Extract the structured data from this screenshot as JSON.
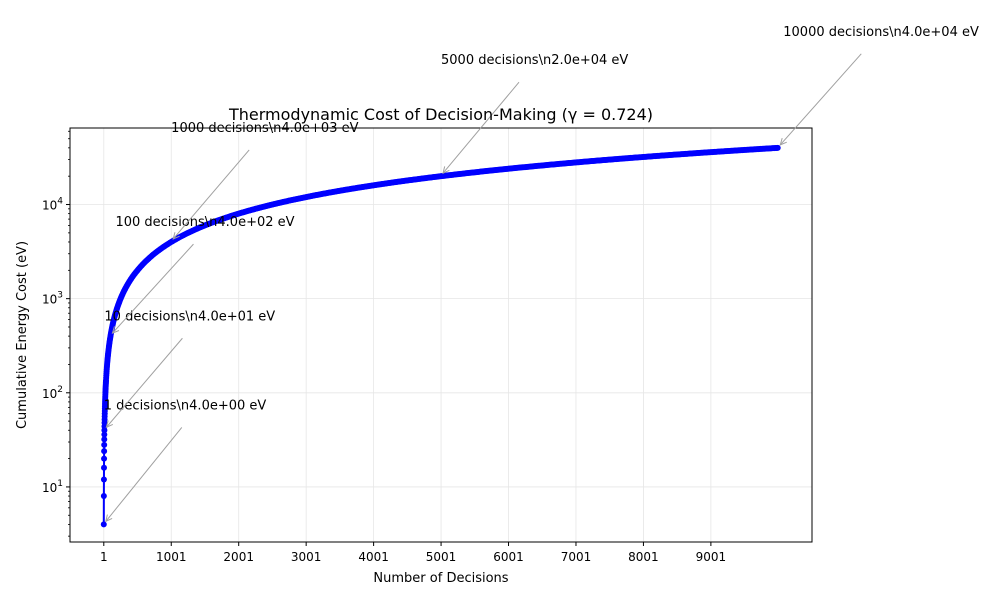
{
  "chart_data": {
    "type": "line",
    "title": "Thermodynamic Cost of Decision-Making (γ = 0.724)",
    "xlabel": "Number of Decisions",
    "ylabel": "Cumulative Energy Cost (eV)",
    "xlim": [
      -500,
      10500
    ],
    "ylim": [
      2.6,
      65000
    ],
    "yscale": "log",
    "grid": true,
    "x_ticks": [
      1,
      1001,
      2001,
      3001,
      4001,
      5001,
      6001,
      7001,
      8001,
      9001
    ],
    "x_tick_labels": [
      "1",
      "1001",
      "2001",
      "3001",
      "4001",
      "5001",
      "6001",
      "7001",
      "8001",
      "9001"
    ],
    "y_ticks": [
      10,
      100,
      1000,
      10000
    ],
    "y_tick_labels": [
      {
        "base": "10",
        "exp": "1"
      },
      {
        "base": "10",
        "exp": "2"
      },
      {
        "base": "10",
        "exp": "3"
      },
      {
        "base": "10",
        "exp": "4"
      }
    ],
    "series": [
      {
        "color": "#0000ff",
        "marker": "circle",
        "x_start": 1,
        "x_end": 10000,
        "x_step": 1,
        "energy_per_decision_eV": 4.0
      }
    ],
    "annotations": [
      {
        "text": "1 decisions\\n4.0e+00 eV",
        "x": 1,
        "y": 4.0
      },
      {
        "text": "10 decisions\\n4.0e+01 eV",
        "x": 10,
        "y": 40
      },
      {
        "text": "100 decisions\\n4.0e+02 eV",
        "x": 100,
        "y": 400
      },
      {
        "text": "1000 decisions\\n4.0e+03 eV",
        "x": 1000,
        "y": 4000
      },
      {
        "text": "5000 decisions\\n2.0e+04 eV",
        "x": 5000,
        "y": 20000
      },
      {
        "text": "10000 decisions\\n4.0e+04 eV",
        "x": 10000,
        "y": 40000
      }
    ],
    "colors": {
      "line": "#0000ff",
      "arrow": "#a0a0a0",
      "grid": "#e6e6e6",
      "axes": "#000000"
    }
  }
}
